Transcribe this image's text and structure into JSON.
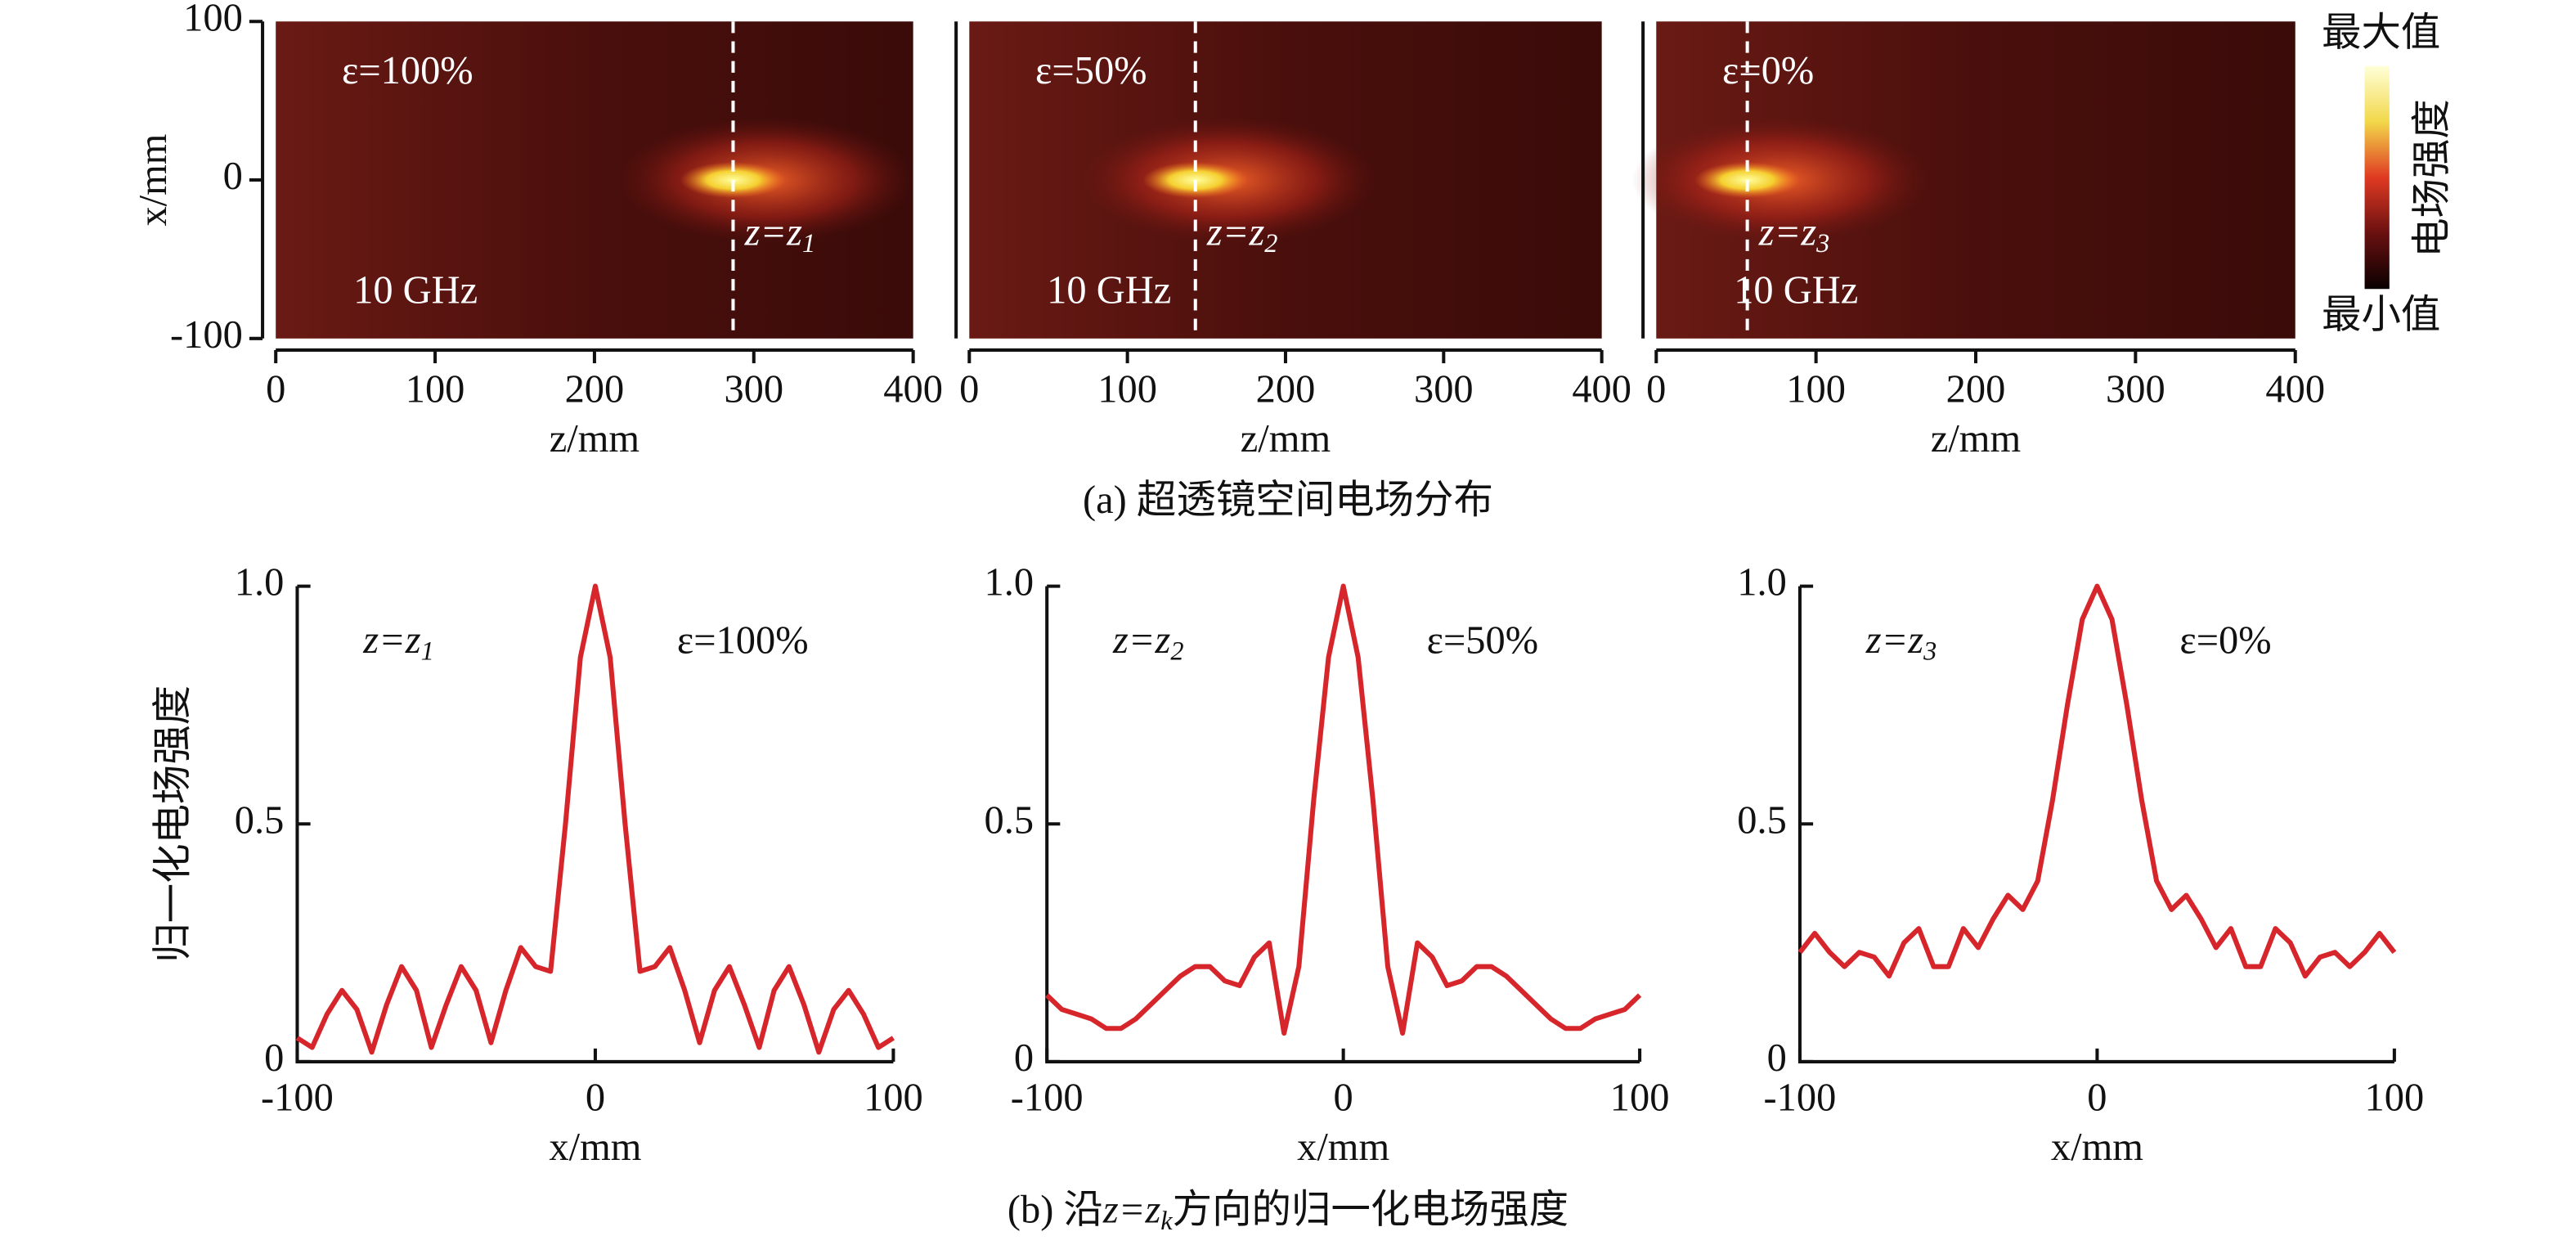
{
  "chart_data": [
    {
      "type": "heatmap",
      "xlabel": "z/mm",
      "ylabel": "x/mm",
      "xlim": [
        0,
        400
      ],
      "xticks": [
        0,
        100,
        200,
        300,
        400
      ],
      "ylim": [
        -100,
        100
      ],
      "yticks": [
        100,
        0,
        -100
      ],
      "label": "ε=100%",
      "frequency": "10 GHz",
      "focus_z": 287,
      "focus_label": {
        "main": "z=z",
        "subscript": "1"
      }
    },
    {
      "type": "heatmap",
      "xlabel": "z/mm",
      "xlim": [
        0,
        400
      ],
      "xticks": [
        0,
        100,
        200,
        300,
        400
      ],
      "ylim": [
        -100,
        100
      ],
      "label": "ε=50%",
      "frequency": "10 GHz",
      "focus_z": 143,
      "focus_label": {
        "main": "z=z",
        "subscript": "2"
      }
    },
    {
      "type": "heatmap",
      "xlabel": "z/mm",
      "xlim": [
        0,
        400
      ],
      "xticks": [
        0,
        100,
        200,
        300,
        400
      ],
      "ylim": [
        -100,
        100
      ],
      "label": "ε=0%",
      "frequency": "10 GHz",
      "focus_z": 57,
      "focus_label": {
        "main": "z=z",
        "subscript": "3"
      }
    },
    {
      "type": "line",
      "xlabel": "x/mm",
      "ylabel": "归一化电场强度",
      "xlim": [
        -100,
        100
      ],
      "xticks": [
        -100,
        0,
        100
      ],
      "ylim": [
        0,
        1
      ],
      "yticks": [
        0,
        0.5,
        {
          "value": 1,
          "label": "1.0"
        }
      ],
      "label": "ε=100%",
      "position_label": {
        "main": "z=z",
        "subscript": "1"
      },
      "x": [
        -100,
        -95,
        -90,
        -85,
        -80,
        -75,
        -70,
        -65,
        -60,
        -55,
        -50,
        -45,
        -40,
        -35,
        -30,
        -25,
        -20,
        -15,
        -10,
        -5,
        0,
        5,
        10,
        15,
        20,
        25,
        30,
        35,
        40,
        45,
        50,
        55,
        60,
        65,
        70,
        75,
        80,
        85,
        90,
        95,
        100
      ],
      "series": [
        {
          "color": "#d7262b",
          "values": [
            0.05,
            0.03,
            0.1,
            0.15,
            0.11,
            0.02,
            0.12,
            0.2,
            0.15,
            0.03,
            0.12,
            0.2,
            0.15,
            0.04,
            0.15,
            0.24,
            0.2,
            0.19,
            0.5,
            0.85,
            1,
            0.85,
            0.5,
            0.19,
            0.2,
            0.24,
            0.15,
            0.04,
            0.15,
            0.2,
            0.12,
            0.03,
            0.15,
            0.2,
            0.12,
            0.02,
            0.11,
            0.15,
            0.1,
            0.03,
            0.05
          ]
        }
      ]
    },
    {
      "type": "line",
      "xlabel": "x/mm",
      "xlim": [
        -100,
        100
      ],
      "xticks": [
        -100,
        0,
        100
      ],
      "ylim": [
        0,
        1
      ],
      "yticks": [
        0,
        0.5,
        {
          "value": 1,
          "label": "1.0"
        }
      ],
      "label": "ε=50%",
      "position_label": {
        "main": "z=z",
        "subscript": "2"
      },
      "x": [
        -100,
        -95,
        -90,
        -85,
        -80,
        -75,
        -70,
        -65,
        -60,
        -55,
        -50,
        -45,
        -40,
        -35,
        -30,
        -25,
        -20,
        -15,
        -10,
        -5,
        0,
        5,
        10,
        15,
        20,
        25,
        30,
        35,
        40,
        45,
        50,
        55,
        60,
        65,
        70,
        75,
        80,
        85,
        90,
        95,
        100
      ],
      "series": [
        {
          "color": "#d7262b",
          "values": [
            0.14,
            0.11,
            0.1,
            0.09,
            0.07,
            0.07,
            0.09,
            0.12,
            0.15,
            0.18,
            0.2,
            0.2,
            0.17,
            0.16,
            0.22,
            0.25,
            0.06,
            0.2,
            0.55,
            0.85,
            1,
            0.85,
            0.55,
            0.2,
            0.06,
            0.25,
            0.22,
            0.16,
            0.17,
            0.2,
            0.2,
            0.18,
            0.15,
            0.12,
            0.09,
            0.07,
            0.07,
            0.09,
            0.1,
            0.11,
            0.14
          ]
        }
      ]
    },
    {
      "type": "line",
      "xlabel": "x/mm",
      "xlim": [
        -100,
        100
      ],
      "xticks": [
        -100,
        0,
        100
      ],
      "ylim": [
        0,
        1
      ],
      "yticks": [
        0,
        0.5,
        {
          "value": 1,
          "label": "1.0"
        }
      ],
      "label": "ε=0%",
      "position_label": {
        "main": "z=z",
        "subscript": "3"
      },
      "x": [
        -100,
        -95,
        -90,
        -85,
        -80,
        -75,
        -70,
        -65,
        -60,
        -55,
        -50,
        -45,
        -40,
        -35,
        -30,
        -25,
        -20,
        -15,
        -10,
        -5,
        0,
        5,
        10,
        15,
        20,
        25,
        30,
        35,
        40,
        45,
        50,
        55,
        60,
        65,
        70,
        75,
        80,
        85,
        90,
        95,
        100
      ],
      "series": [
        {
          "color": "#d7262b",
          "values": [
            0.23,
            0.27,
            0.23,
            0.2,
            0.23,
            0.22,
            0.18,
            0.25,
            0.28,
            0.2,
            0.2,
            0.28,
            0.24,
            0.3,
            0.35,
            0.32,
            0.38,
            0.55,
            0.75,
            0.93,
            1,
            0.93,
            0.75,
            0.55,
            0.38,
            0.32,
            0.35,
            0.3,
            0.24,
            0.28,
            0.2,
            0.2,
            0.28,
            0.25,
            0.18,
            0.22,
            0.23,
            0.2,
            0.23,
            0.27,
            0.23
          ]
        }
      ]
    }
  ],
  "colorbar": {
    "max_label": "最大值",
    "min_label": "最小值",
    "title": "电场强度"
  },
  "captions": {
    "a": "(a) 超透镜空间电场分布",
    "b": {
      "before": "(b) 沿",
      "main": "z=z",
      "subscript": "k",
      "after": "方向的归一化电场强度"
    }
  }
}
